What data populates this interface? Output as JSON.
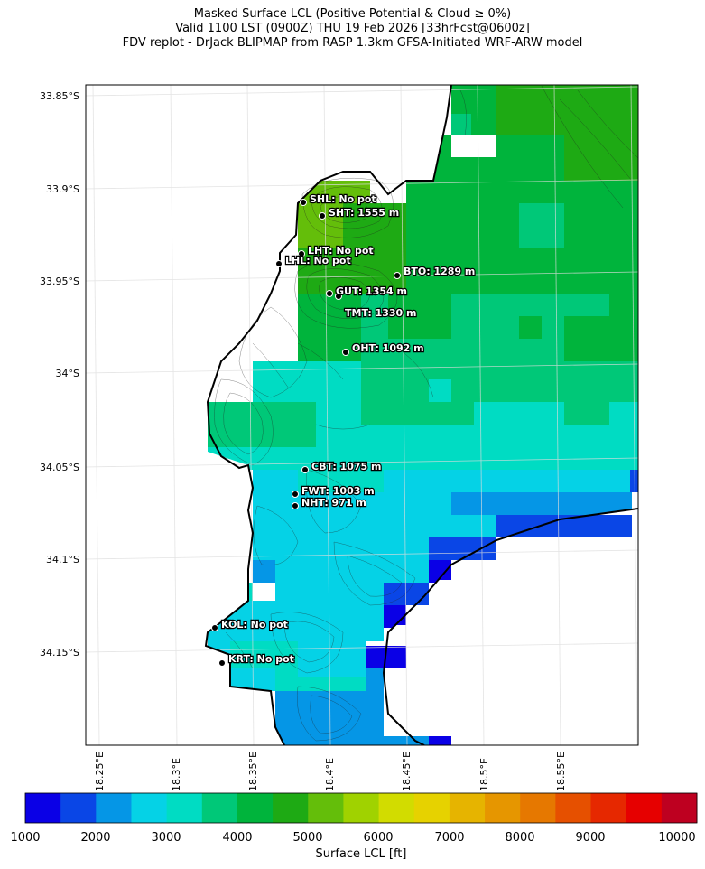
{
  "header": {
    "line1": "Masked Surface LCL (Positive Potential & Cloud ≥ 0%)",
    "line2": "Valid 1100 LST (0900Z) THU 19 Feb 2026 [33hrFcst@0600z]",
    "line3": "FDV replot - DrJack BLIPMAP from RASP 1.3km GFSA-Initiated WRF-ARW model"
  },
  "axes": {
    "lat_ticks": [
      "33.85°S",
      "33.9°S",
      "33.95°S",
      "34°S",
      "34.05°S",
      "34.1°S",
      "34.15°S"
    ],
    "lon_ticks": [
      "18.25°E",
      "18.3°E",
      "18.35°E",
      "18.4°E",
      "18.45°E",
      "18.5°E",
      "18.55°E"
    ]
  },
  "stations": [
    {
      "code": "SHL",
      "label": "SHL: No pot"
    },
    {
      "code": "SHT",
      "label": "SHT: 1555 m"
    },
    {
      "code": "LHT",
      "label": "LHT: No pot"
    },
    {
      "code": "LHL",
      "label": "LHL: No pot"
    },
    {
      "code": "BTO",
      "label": "BTO: 1289 m"
    },
    {
      "code": "GUT",
      "label": "GUT: 1354 m"
    },
    {
      "code": "TMT",
      "label": "TMT: 1330 m"
    },
    {
      "code": "OHT",
      "label": "OHT: 1092 m"
    },
    {
      "code": "CBT",
      "label": "CBT: 1075 m"
    },
    {
      "code": "FWT",
      "label": "FWT: 1003 m"
    },
    {
      "code": "NHT",
      "label": "NHT: 971 m"
    },
    {
      "code": "KOL",
      "label": "KOL: No pot"
    },
    {
      "code": "KRT",
      "label": "KRT: No pot"
    }
  ],
  "colorbar": {
    "label": "Surface LCL [ft]",
    "ticks": [
      "1000",
      "2000",
      "3000",
      "4000",
      "5000",
      "6000",
      "7000",
      "8000",
      "9000",
      "10000"
    ],
    "colors": [
      "#0a00e6",
      "#0a46e6",
      "#0596e6",
      "#05d2e6",
      "#00dcc3",
      "#00c878",
      "#00b43c",
      "#1eaa14",
      "#64be0a",
      "#a0d200",
      "#d2dc00",
      "#e6d200",
      "#e6b400",
      "#e69600",
      "#e67800",
      "#e65000",
      "#e62800",
      "#e60000",
      "#be0020"
    ]
  }
}
